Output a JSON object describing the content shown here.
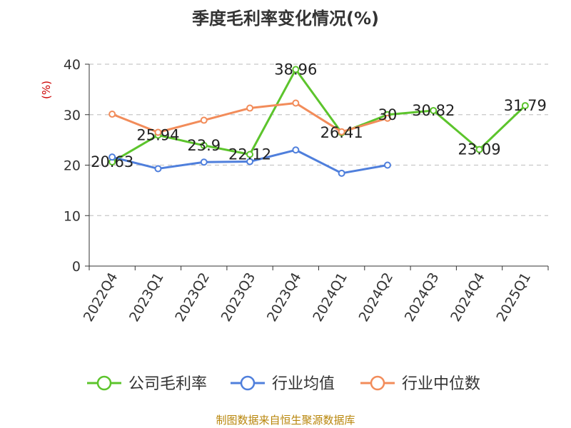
{
  "chart_data": {
    "type": "line",
    "title": "季度毛利率变化情况(%)",
    "ylabel": "(%)",
    "ylim": [
      0,
      40
    ],
    "yticks": [
      0,
      10,
      20,
      30,
      40
    ],
    "grid": true,
    "legend": "bottom",
    "categories": [
      "2022Q4",
      "2023Q1",
      "2023Q2",
      "2023Q3",
      "2023Q4",
      "2024Q1",
      "2024Q2",
      "2024Q3",
      "2024Q4",
      "2025Q1"
    ],
    "series": [
      {
        "name": "公司毛利率",
        "color": "#5cc42c",
        "values": [
          20.63,
          25.94,
          23.9,
          22.12,
          38.96,
          26.41,
          30,
          30.82,
          23.09,
          31.79
        ],
        "labels": [
          "20.63",
          "25.94",
          "23.9",
          "22.12",
          "38.96",
          "26.41",
          "30",
          "30.82",
          "23.09",
          "31.79"
        ]
      },
      {
        "name": "行业均值",
        "color": "#4f7fdc",
        "values": [
          21.6,
          19.3,
          20.6,
          20.7,
          23.0,
          18.4,
          20.0,
          null,
          null,
          null
        ]
      },
      {
        "name": "行业中位数",
        "color": "#f28c5a",
        "values": [
          30.1,
          26.5,
          28.9,
          31.3,
          32.3,
          26.6,
          29.3,
          null,
          null,
          null
        ]
      }
    ],
    "source": "制图数据来自恒生聚源数据库"
  }
}
